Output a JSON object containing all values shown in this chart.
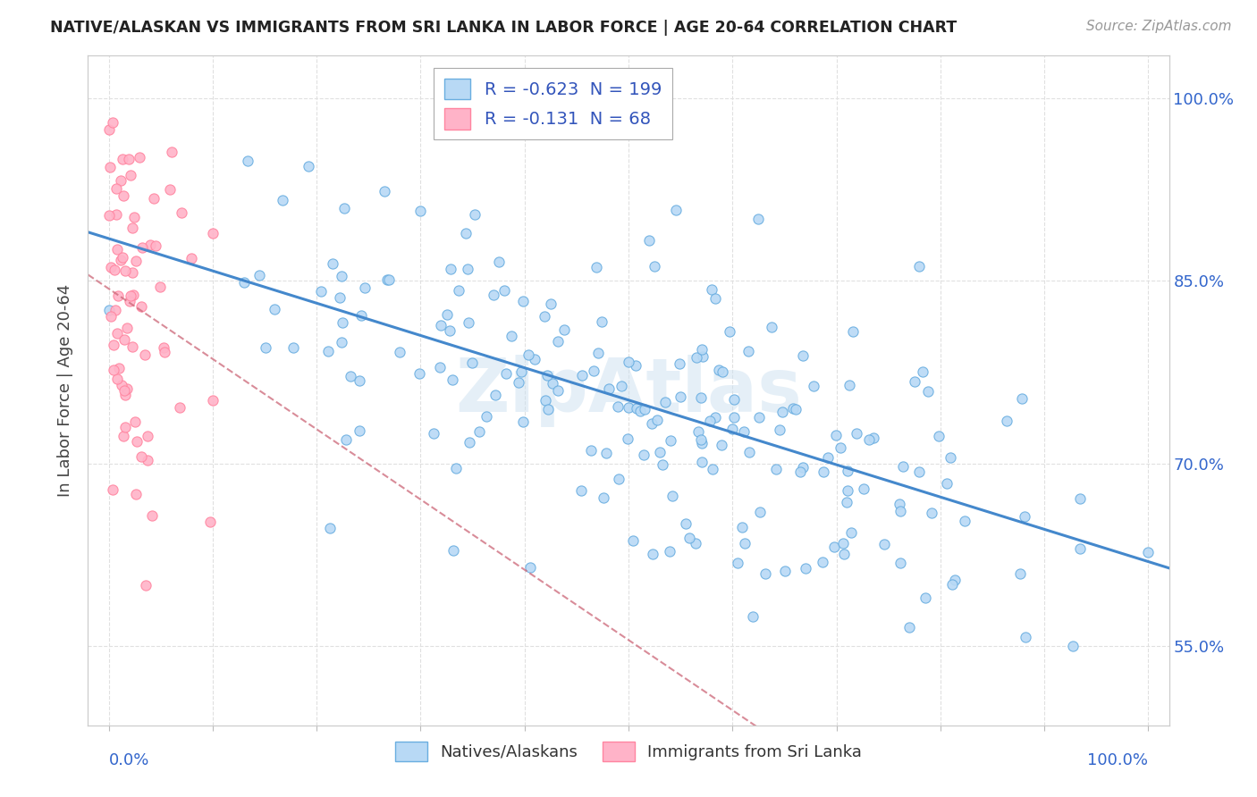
{
  "title": "NATIVE/ALASKAN VS IMMIGRANTS FROM SRI LANKA IN LABOR FORCE | AGE 20-64 CORRELATION CHART",
  "source": "Source: ZipAtlas.com",
  "ylabel": "In Labor Force | Age 20-64",
  "right_ytick_labels": [
    "55.0%",
    "70.0%",
    "85.0%",
    "100.0%"
  ],
  "right_ytick_values": [
    0.55,
    0.7,
    0.85,
    1.0
  ],
  "xlim": [
    -0.02,
    1.02
  ],
  "ylim": [
    0.485,
    1.035
  ],
  "series1_label": "Natives/Alaskans",
  "series1_color": "#b8d9f5",
  "series1_edge_color": "#6aaee0",
  "series1_R": -0.623,
  "series1_N": 199,
  "series1_line_color": "#4488cc",
  "series2_label": "Immigrants from Sri Lanka",
  "series2_color": "#ffb3c8",
  "series2_edge_color": "#ff85a0",
  "series2_R": -0.131,
  "series2_N": 68,
  "series2_line_color": "#cc6677",
  "watermark": "ZipAtlas",
  "watermark_color": "#cce0f0",
  "background_color": "#ffffff",
  "grid_color": "#e0e0e0",
  "title_color": "#222222",
  "source_color": "#999999",
  "axis_label_color": "#3366cc",
  "ylabel_color": "#444444"
}
